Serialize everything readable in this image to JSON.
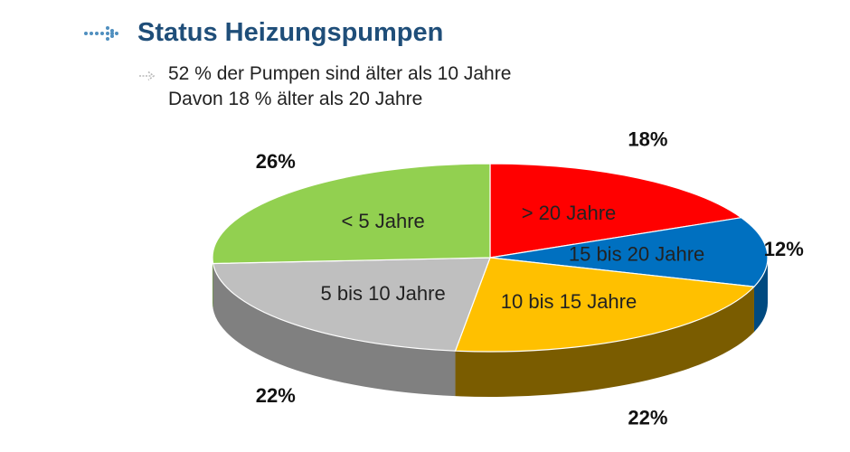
{
  "header": {
    "title": "Status Heizungspumpen",
    "bullets": [
      "52 % der Pumpen sind älter als 10 Jahre",
      "Davon 18 % älter als 20 Jahre"
    ]
  },
  "colors": {
    "title": "#1f4e79",
    "arrow": "#4f8fbf",
    "bullet_arrow": "#b9b9b9"
  },
  "chart_data": {
    "type": "pie",
    "style": "3d",
    "title": "",
    "categories": [
      "> 20 Jahre",
      "15 bis 20 Jahre",
      "10 bis 15 Jahre",
      "5 bis 10 Jahre",
      "< 5 Jahre"
    ],
    "values": [
      18,
      12,
      22,
      22,
      26
    ],
    "value_labels": [
      "18%",
      "12%",
      "22%",
      "22%",
      "26%"
    ],
    "colors": [
      "#ff0000",
      "#0070c0",
      "#ffc000",
      "#bfbfbf",
      "#92d050"
    ],
    "side_colors": [
      "#a00000",
      "#004a80",
      "#7a5c00",
      "#808080",
      "#5e8f2e"
    ],
    "start_angle_deg": -90,
    "direction": "clockwise"
  }
}
